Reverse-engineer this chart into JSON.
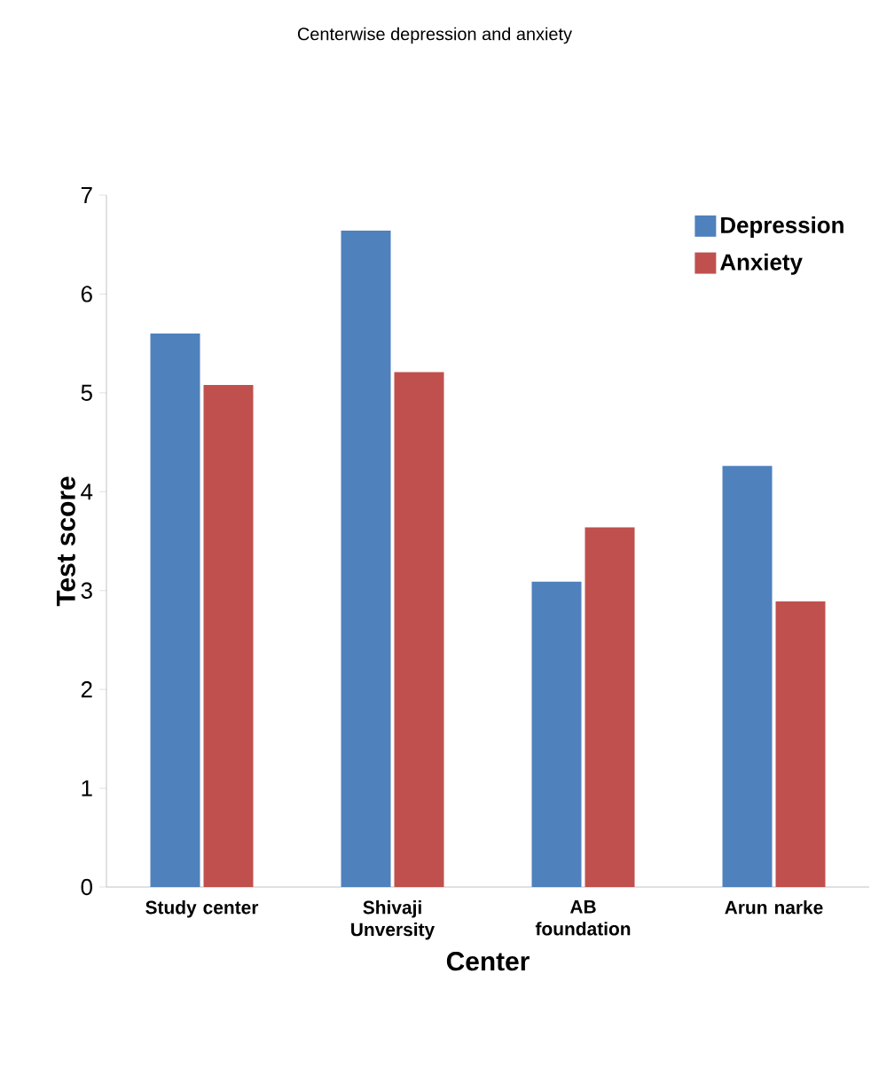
{
  "chart_data": {
    "type": "bar",
    "title": "Centerwise depression and anxiety",
    "xlabel": "Center",
    "ylabel": "Test score",
    "categories": [
      "Study center",
      "Shivaji Unversity",
      "AB foundation",
      "Arun narke"
    ],
    "series": [
      {
        "name": "Depression",
        "color": "#4f81bd",
        "values": [
          5.6,
          6.64,
          3.09,
          4.26
        ]
      },
      {
        "name": "Anxiety",
        "color": "#c0504d",
        "values": [
          5.08,
          5.21,
          3.64,
          2.89
        ]
      }
    ],
    "ylim": [
      0,
      7
    ],
    "yticks": [
      0,
      1,
      2,
      3,
      4,
      5,
      6,
      7
    ],
    "legend": "top right"
  }
}
